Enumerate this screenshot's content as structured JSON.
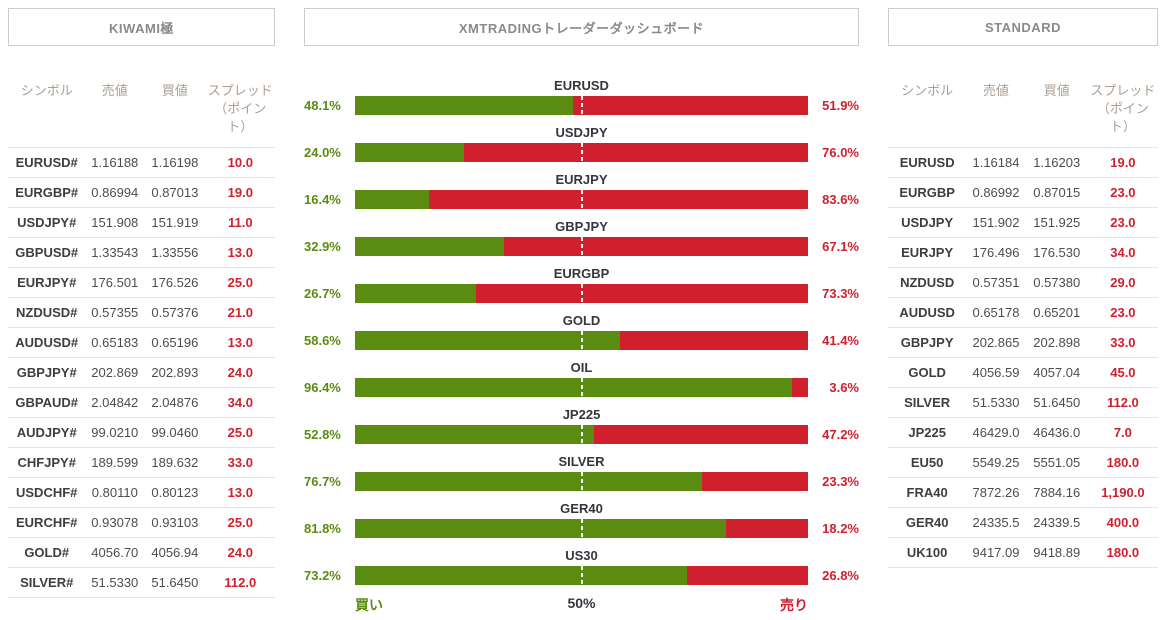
{
  "colors": {
    "buy_green": "#5a8c11",
    "sell_red": "#d0202e",
    "spread_red": "#cc2130",
    "title_gray": "#8a8a8a",
    "header_tan": "#ab9e92"
  },
  "left_panel": {
    "title": "KIWAMI極",
    "columns": {
      "symbol": "シンボル",
      "sell": "売値",
      "buy": "買値",
      "spread": "スプレッド（ポイント）"
    },
    "rows": [
      {
        "symbol": "EURUSD#",
        "sell": "1.16188",
        "buy": "1.16198",
        "spread": "10.0"
      },
      {
        "symbol": "EURGBP#",
        "sell": "0.86994",
        "buy": "0.87013",
        "spread": "19.0"
      },
      {
        "symbol": "USDJPY#",
        "sell": "151.908",
        "buy": "151.919",
        "spread": "11.0"
      },
      {
        "symbol": "GBPUSD#",
        "sell": "1.33543",
        "buy": "1.33556",
        "spread": "13.0"
      },
      {
        "symbol": "EURJPY#",
        "sell": "176.501",
        "buy": "176.526",
        "spread": "25.0"
      },
      {
        "symbol": "NZDUSD#",
        "sell": "0.57355",
        "buy": "0.57376",
        "spread": "21.0"
      },
      {
        "symbol": "AUDUSD#",
        "sell": "0.65183",
        "buy": "0.65196",
        "spread": "13.0"
      },
      {
        "symbol": "GBPJPY#",
        "sell": "202.869",
        "buy": "202.893",
        "spread": "24.0"
      },
      {
        "symbol": "GBPAUD#",
        "sell": "2.04842",
        "buy": "2.04876",
        "spread": "34.0"
      },
      {
        "symbol": "AUDJPY#",
        "sell": "99.0210",
        "buy": "99.0460",
        "spread": "25.0"
      },
      {
        "symbol": "CHFJPY#",
        "sell": "189.599",
        "buy": "189.632",
        "spread": "33.0"
      },
      {
        "symbol": "USDCHF#",
        "sell": "0.80110",
        "buy": "0.80123",
        "spread": "13.0"
      },
      {
        "symbol": "EURCHF#",
        "sell": "0.93078",
        "buy": "0.93103",
        "spread": "25.0"
      },
      {
        "symbol": "GOLD#",
        "sell": "4056.70",
        "buy": "4056.94",
        "spread": "24.0"
      },
      {
        "symbol": "SILVER#",
        "sell": "51.5330",
        "buy": "51.6450",
        "spread": "112.0"
      }
    ]
  },
  "center_panel": {
    "title": "XMTRADINGトレーダーダッシュボード",
    "axis": {
      "left": "買い",
      "center": "50%",
      "right": "売り"
    },
    "instruments": [
      {
        "label": "EURUSD",
        "buy": 48.1,
        "sell": 51.9,
        "buy_label": "48.1%",
        "sell_label": "51.9%"
      },
      {
        "label": "USDJPY",
        "buy": 24.0,
        "sell": 76.0,
        "buy_label": "24.0%",
        "sell_label": "76.0%"
      },
      {
        "label": "EURJPY",
        "buy": 16.4,
        "sell": 83.6,
        "buy_label": "16.4%",
        "sell_label": "83.6%"
      },
      {
        "label": "GBPJPY",
        "buy": 32.9,
        "sell": 67.1,
        "buy_label": "32.9%",
        "sell_label": "67.1%"
      },
      {
        "label": "EURGBP",
        "buy": 26.7,
        "sell": 73.3,
        "buy_label": "26.7%",
        "sell_label": "73.3%"
      },
      {
        "label": "GOLD",
        "buy": 58.6,
        "sell": 41.4,
        "buy_label": "58.6%",
        "sell_label": "41.4%"
      },
      {
        "label": "OIL",
        "buy": 96.4,
        "sell": 3.6,
        "buy_label": "96.4%",
        "sell_label": "3.6%"
      },
      {
        "label": "JP225",
        "buy": 52.8,
        "sell": 47.2,
        "buy_label": "52.8%",
        "sell_label": "47.2%"
      },
      {
        "label": "SILVER",
        "buy": 76.7,
        "sell": 23.3,
        "buy_label": "76.7%",
        "sell_label": "23.3%"
      },
      {
        "label": "GER40",
        "buy": 81.8,
        "sell": 18.2,
        "buy_label": "81.8%",
        "sell_label": "18.2%"
      },
      {
        "label": "US30",
        "buy": 73.2,
        "sell": 26.8,
        "buy_label": "73.2%",
        "sell_label": "26.8%"
      }
    ]
  },
  "chart_data": {
    "type": "bar",
    "subtype": "horizontal-stacked-100percent",
    "title": "XMTRADINGトレーダーダッシュボード",
    "categories": [
      "EURUSD",
      "USDJPY",
      "EURJPY",
      "GBPJPY",
      "EURGBP",
      "GOLD",
      "OIL",
      "JP225",
      "SILVER",
      "GER40",
      "US30"
    ],
    "series": [
      {
        "name": "買い",
        "color": "#5a8c11",
        "values": [
          48.1,
          24.0,
          16.4,
          32.9,
          26.7,
          58.6,
          96.4,
          52.8,
          76.7,
          81.8,
          73.2
        ]
      },
      {
        "name": "売り",
        "color": "#d0202e",
        "values": [
          51.9,
          76.0,
          83.6,
          67.1,
          73.3,
          41.4,
          3.6,
          47.2,
          23.3,
          18.2,
          26.8
        ]
      }
    ],
    "xlim": [
      0,
      100
    ],
    "xlabel": "",
    "ylabel": "",
    "annotations": {
      "midline": "50% dashed white reference line",
      "left_axis_label": "買い",
      "center_axis_label": "50%",
      "right_axis_label": "売り"
    },
    "grid": false,
    "legend_position": "none"
  },
  "right_panel": {
    "title": "STANDARD",
    "columns": {
      "symbol": "シンボル",
      "sell": "売値",
      "buy": "買値",
      "spread": "スプレッド（ポイント）"
    },
    "rows": [
      {
        "symbol": "EURUSD",
        "sell": "1.16184",
        "buy": "1.16203",
        "spread": "19.0"
      },
      {
        "symbol": "EURGBP",
        "sell": "0.86992",
        "buy": "0.87015",
        "spread": "23.0"
      },
      {
        "symbol": "USDJPY",
        "sell": "151.902",
        "buy": "151.925",
        "spread": "23.0"
      },
      {
        "symbol": "EURJPY",
        "sell": "176.496",
        "buy": "176.530",
        "spread": "34.0"
      },
      {
        "symbol": "NZDUSD",
        "sell": "0.57351",
        "buy": "0.57380",
        "spread": "29.0"
      },
      {
        "symbol": "AUDUSD",
        "sell": "0.65178",
        "buy": "0.65201",
        "spread": "23.0"
      },
      {
        "symbol": "GBPJPY",
        "sell": "202.865",
        "buy": "202.898",
        "spread": "33.0"
      },
      {
        "symbol": "GOLD",
        "sell": "4056.59",
        "buy": "4057.04",
        "spread": "45.0"
      },
      {
        "symbol": "SILVER",
        "sell": "51.5330",
        "buy": "51.6450",
        "spread": "112.0"
      },
      {
        "symbol": "JP225",
        "sell": "46429.0",
        "buy": "46436.0",
        "spread": "7.0"
      },
      {
        "symbol": "EU50",
        "sell": "5549.25",
        "buy": "5551.05",
        "spread": "180.0"
      },
      {
        "symbol": "FRA40",
        "sell": "7872.26",
        "buy": "7884.16",
        "spread": "1,190.0"
      },
      {
        "symbol": "GER40",
        "sell": "24335.5",
        "buy": "24339.5",
        "spread": "400.0"
      },
      {
        "symbol": "UK100",
        "sell": "9417.09",
        "buy": "9418.89",
        "spread": "180.0"
      }
    ]
  }
}
